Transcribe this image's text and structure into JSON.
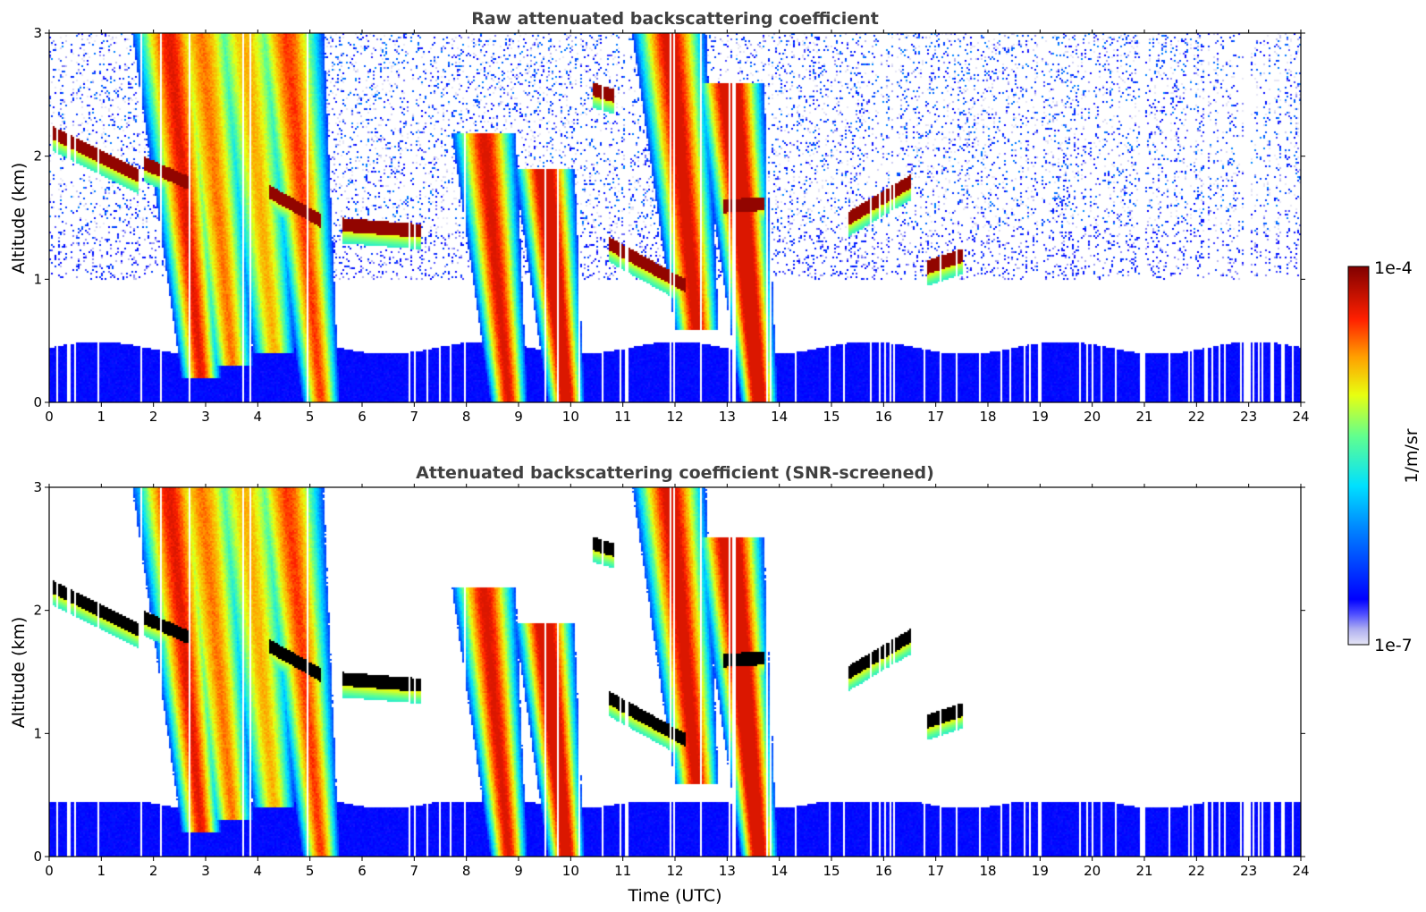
{
  "chart_data": [
    {
      "type": "heatmap",
      "title": "Raw attenuated backscattering coefficient",
      "xlabel": "",
      "ylabel": "Altitude (km)",
      "xlim": [
        0,
        24
      ],
      "ylim": [
        0,
        3
      ],
      "x_ticks": [
        "0",
        "1",
        "2",
        "3",
        "4",
        "5",
        "6",
        "7",
        "8",
        "9",
        "10",
        "11",
        "12",
        "13",
        "14",
        "15",
        "16",
        "17",
        "18",
        "19",
        "20",
        "21",
        "22",
        "23",
        "24"
      ],
      "y_ticks": [
        "0",
        "1",
        "2",
        "3"
      ],
      "screened": false,
      "features": {
        "boundary_layer": {
          "x_range": [
            0,
            24
          ],
          "top_km": 0.45
        },
        "aerosol_plumes": [
          {
            "x": 2.9,
            "top": 3.0,
            "bottom": 0.2,
            "level": 0.7
          },
          {
            "x": 3.5,
            "top": 3.0,
            "bottom": 0.3,
            "level": 0.6
          },
          {
            "x": 4.3,
            "top": 3.0,
            "bottom": 0.4,
            "level": 0.55
          },
          {
            "x": 5.2,
            "top": 3.0,
            "bottom": 0.0,
            "level": 0.65
          },
          {
            "x": 8.8,
            "top": 2.2,
            "bottom": 0.0,
            "level": 0.72
          },
          {
            "x": 9.9,
            "top": 1.9,
            "bottom": 0.0,
            "level": 0.8
          },
          {
            "x": 12.4,
            "top": 3.0,
            "bottom": 0.6,
            "level": 0.75
          },
          {
            "x": 13.6,
            "top": 2.6,
            "bottom": 0.0,
            "level": 0.82
          }
        ],
        "cloud_layers": [
          {
            "x_start": 0.05,
            "x_end": 1.7,
            "alt_start": 2.2,
            "alt_end": 1.85
          },
          {
            "x_start": 1.8,
            "x_end": 2.7,
            "alt_start": 1.95,
            "alt_end": 1.78
          },
          {
            "x_start": 4.2,
            "x_end": 5.2,
            "alt_start": 1.72,
            "alt_end": 1.48
          },
          {
            "x_start": 5.6,
            "x_end": 7.1,
            "alt_start": 1.45,
            "alt_end": 1.4
          },
          {
            "x_start": 10.7,
            "x_end": 12.2,
            "alt_start": 1.3,
            "alt_end": 0.95
          },
          {
            "x_start": 12.9,
            "x_end": 13.7,
            "alt_start": 1.6,
            "alt_end": 1.62
          },
          {
            "x_start": 15.3,
            "x_end": 16.5,
            "alt_start": 1.5,
            "alt_end": 1.8
          },
          {
            "x_start": 16.8,
            "x_end": 17.5,
            "alt_start": 1.1,
            "alt_end": 1.2
          },
          {
            "x_start": 10.4,
            "x_end": 10.8,
            "alt_start": 2.55,
            "alt_end": 2.5
          }
        ]
      }
    },
    {
      "type": "heatmap",
      "title": "Attenuated backscattering coefficient (SNR-screened)",
      "xlabel": "Time (UTC)",
      "ylabel": "Altitude (km)",
      "xlim": [
        0,
        24
      ],
      "ylim": [
        0,
        3
      ],
      "x_ticks": [
        "0",
        "1",
        "2",
        "3",
        "4",
        "5",
        "6",
        "7",
        "8",
        "9",
        "10",
        "11",
        "12",
        "13",
        "14",
        "15",
        "16",
        "17",
        "18",
        "19",
        "20",
        "21",
        "22",
        "23",
        "24"
      ],
      "y_ticks": [
        "0",
        "1",
        "2",
        "3"
      ],
      "screened": true
    }
  ],
  "colorbar": {
    "label": "1/m/sr",
    "max_label": "1e-4",
    "min_label": "1e-7",
    "colormap": "jet",
    "scale": "log"
  },
  "colors": {
    "background": "#ffffff",
    "title": "#404040",
    "clipped_cloud_screened": "#000000"
  }
}
